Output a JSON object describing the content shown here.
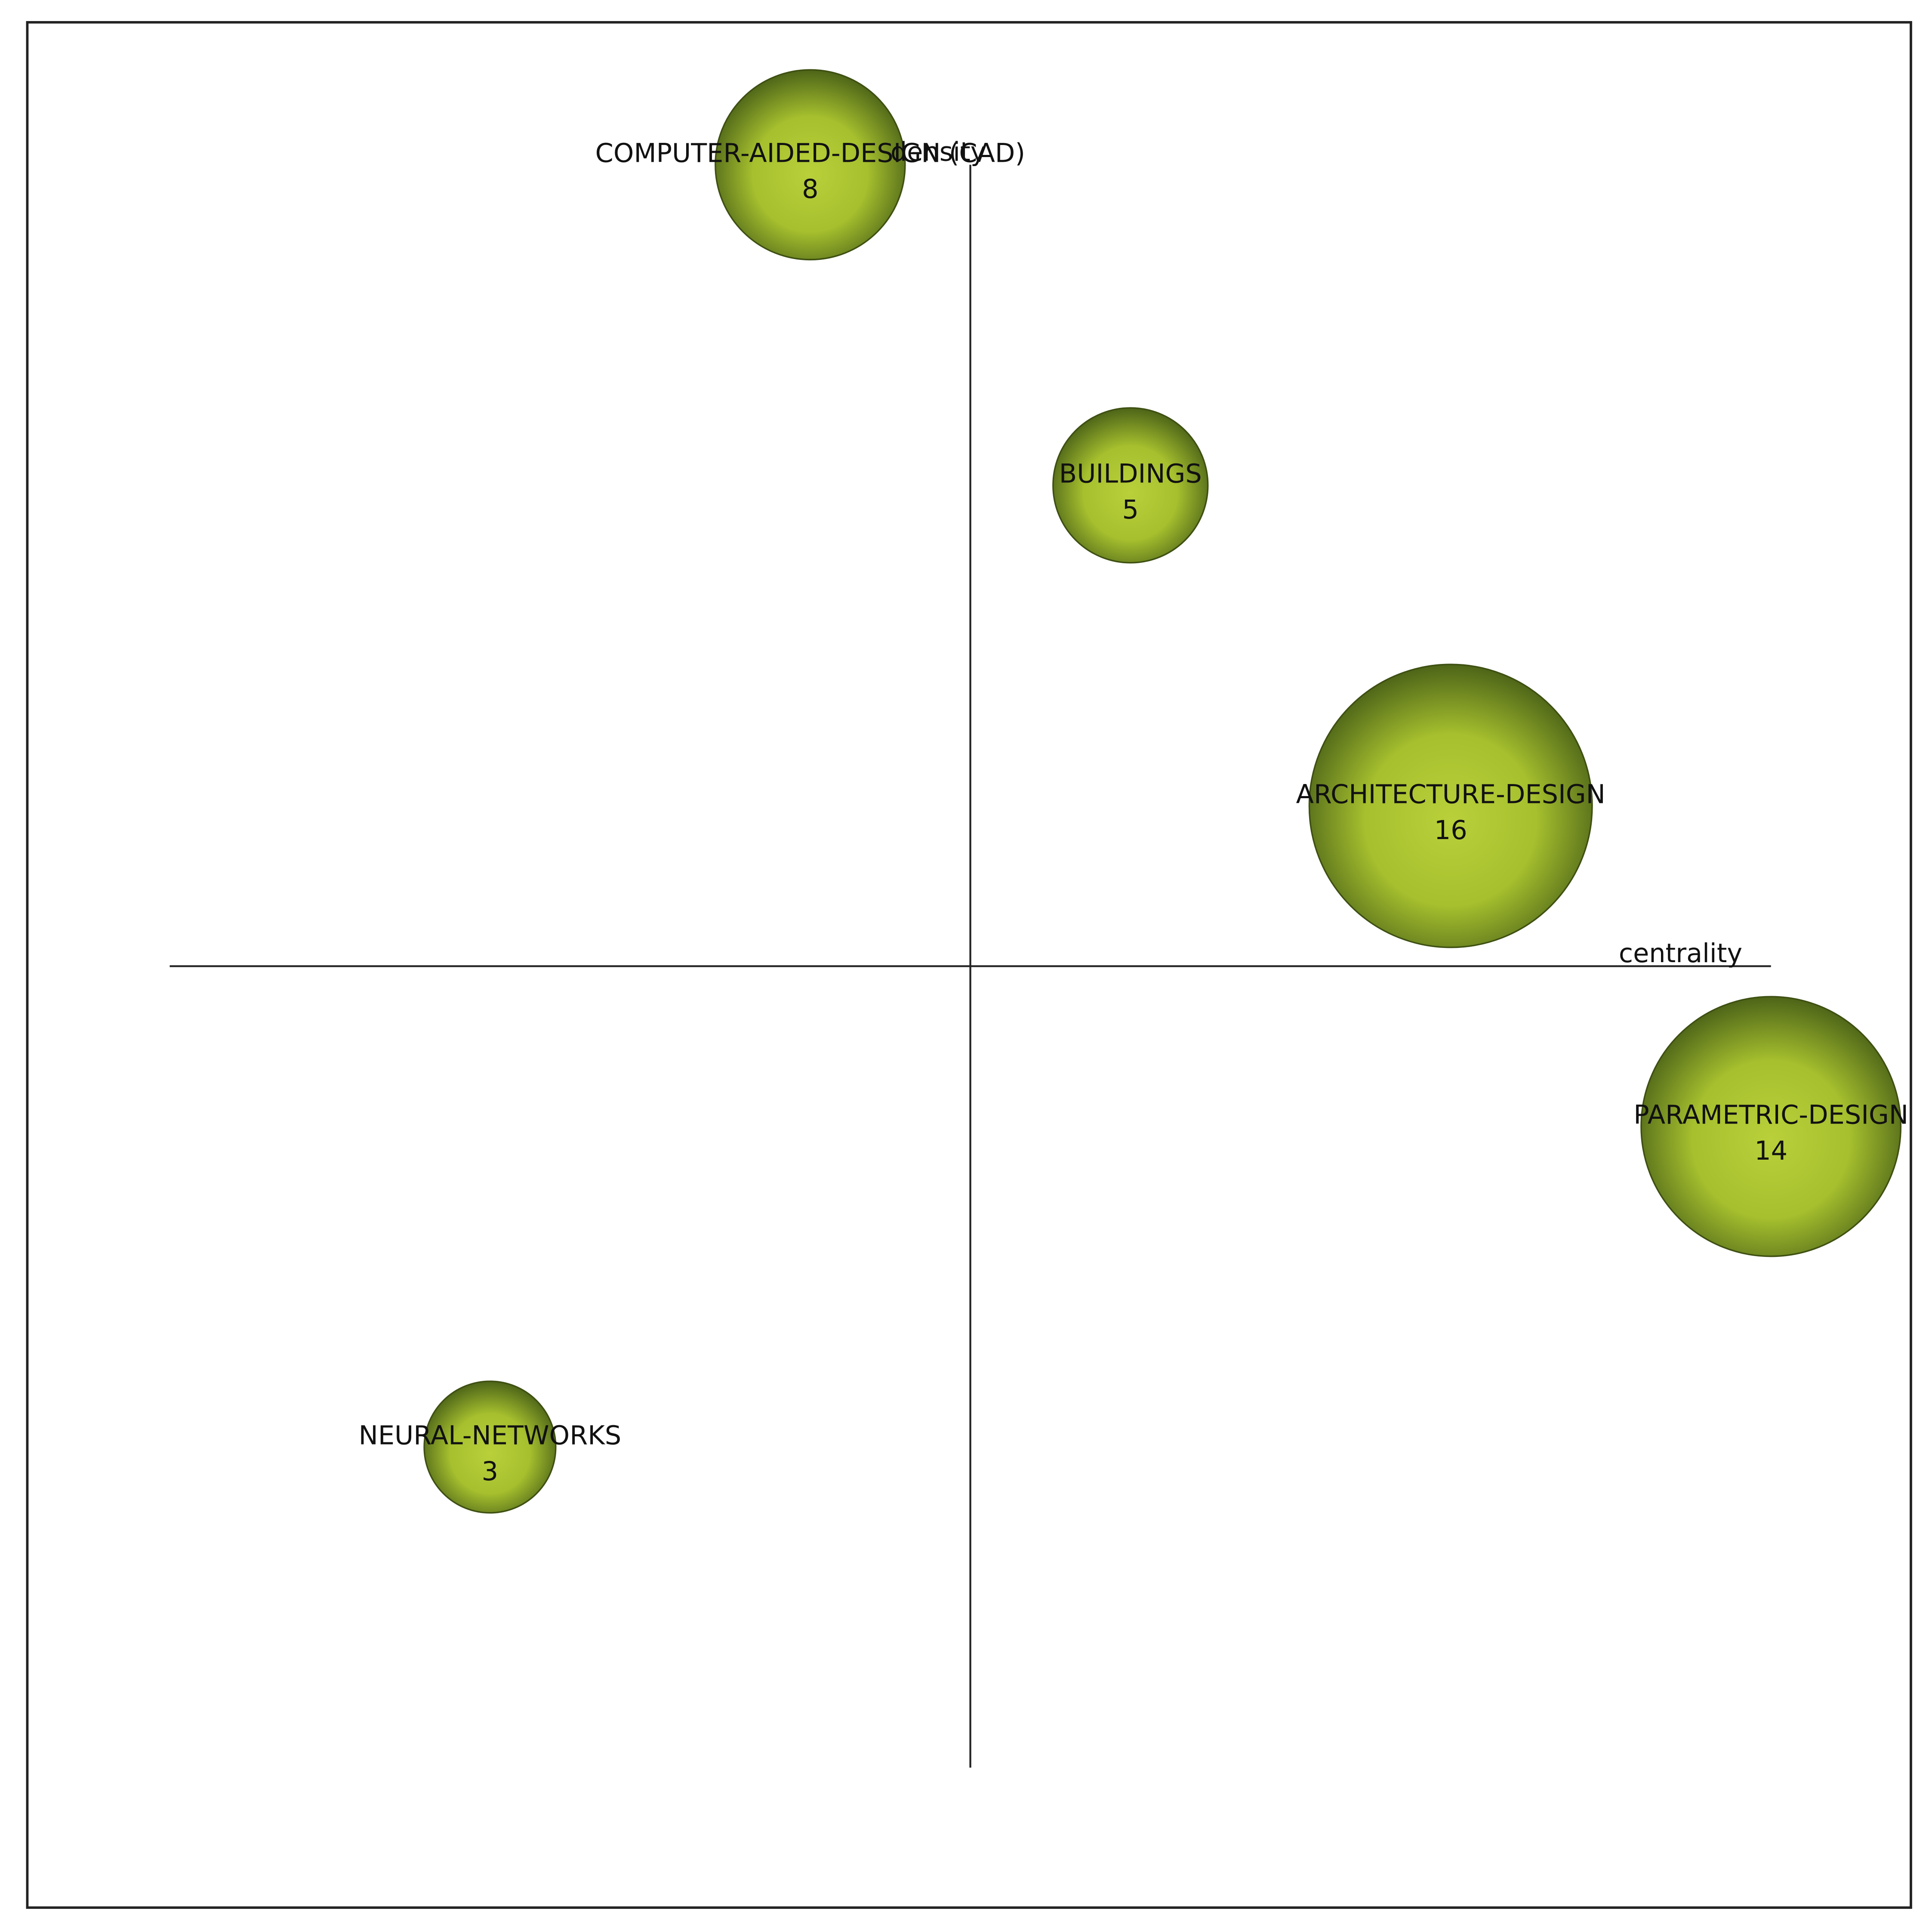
{
  "chart_data": {
    "type": "bubble",
    "x_label": "centrality",
    "y_label": "density",
    "labels": [
      "COMPUTER-AIDED-DESIGN (CAD)",
      "BUILDINGS",
      "ARCHITECTURE-DESIGN",
      "PARAMETRIC-DESIGN",
      "NEURAL-NETWORKS"
    ],
    "x": [
      -0.2,
      0.2,
      0.6,
      1.0,
      -0.6
    ],
    "y": [
      1.0,
      0.6,
      0.2,
      -0.2,
      -0.6
    ],
    "sizes": [
      8,
      5,
      16,
      14,
      3
    ],
    "xlim": [
      -1,
      1
    ],
    "ylim": [
      -1,
      1
    ],
    "color": "#b9d03a"
  }
}
